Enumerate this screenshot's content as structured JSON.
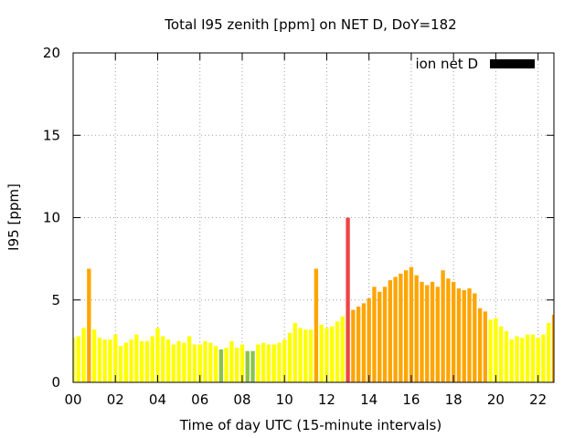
{
  "chart_data": {
    "type": "bar",
    "title": "Total I95 zenith [ppm] on NET D, DoY=182",
    "xlabel": "Time of day UTC (15-minute intervals)",
    "ylabel": "I95 [ppm]",
    "xlim": [
      0,
      22.75
    ],
    "ylim": [
      0,
      20
    ],
    "x_tick_labels": [
      "00",
      "02",
      "04",
      "06",
      "08",
      "10",
      "12",
      "14",
      "16",
      "18",
      "20",
      "22"
    ],
    "x_tick_values": [
      0,
      2,
      4,
      6,
      8,
      10,
      12,
      14,
      16,
      18,
      20,
      22
    ],
    "y_tick_values": [
      0,
      5,
      10,
      15,
      20
    ],
    "grid": true,
    "legend": {
      "label": "ion net D",
      "color": "#000000",
      "placement": "top-right"
    },
    "colors": {
      "green": "#8BC34A",
      "yellow": "#FFFF00",
      "orange": "#FFA500",
      "red": "#EE4444"
    },
    "bars": [
      {
        "x": 0.0,
        "y": 2.7,
        "c": "yellow"
      },
      {
        "x": 0.25,
        "y": 2.8,
        "c": "yellow"
      },
      {
        "x": 0.5,
        "y": 3.3,
        "c": "yellow"
      },
      {
        "x": 0.75,
        "y": 6.9,
        "c": "orange"
      },
      {
        "x": 1.0,
        "y": 3.2,
        "c": "yellow"
      },
      {
        "x": 1.25,
        "y": 2.7,
        "c": "yellow"
      },
      {
        "x": 1.5,
        "y": 2.6,
        "c": "yellow"
      },
      {
        "x": 1.75,
        "y": 2.6,
        "c": "yellow"
      },
      {
        "x": 2.0,
        "y": 2.9,
        "c": "yellow"
      },
      {
        "x": 2.25,
        "y": 2.2,
        "c": "yellow"
      },
      {
        "x": 2.5,
        "y": 2.4,
        "c": "yellow"
      },
      {
        "x": 2.75,
        "y": 2.6,
        "c": "yellow"
      },
      {
        "x": 3.0,
        "y": 2.9,
        "c": "yellow"
      },
      {
        "x": 3.25,
        "y": 2.5,
        "c": "yellow"
      },
      {
        "x": 3.5,
        "y": 2.5,
        "c": "yellow"
      },
      {
        "x": 3.75,
        "y": 2.8,
        "c": "yellow"
      },
      {
        "x": 4.0,
        "y": 3.3,
        "c": "yellow"
      },
      {
        "x": 4.25,
        "y": 2.8,
        "c": "yellow"
      },
      {
        "x": 4.5,
        "y": 2.6,
        "c": "yellow"
      },
      {
        "x": 4.75,
        "y": 2.3,
        "c": "yellow"
      },
      {
        "x": 5.0,
        "y": 2.5,
        "c": "yellow"
      },
      {
        "x": 5.25,
        "y": 2.4,
        "c": "yellow"
      },
      {
        "x": 5.5,
        "y": 2.8,
        "c": "yellow"
      },
      {
        "x": 5.75,
        "y": 2.3,
        "c": "yellow"
      },
      {
        "x": 6.0,
        "y": 2.3,
        "c": "yellow"
      },
      {
        "x": 6.25,
        "y": 2.5,
        "c": "yellow"
      },
      {
        "x": 6.5,
        "y": 2.4,
        "c": "yellow"
      },
      {
        "x": 6.75,
        "y": 2.2,
        "c": "yellow"
      },
      {
        "x": 7.0,
        "y": 2.0,
        "c": "green"
      },
      {
        "x": 7.25,
        "y": 2.1,
        "c": "yellow"
      },
      {
        "x": 7.5,
        "y": 2.5,
        "c": "yellow"
      },
      {
        "x": 7.75,
        "y": 2.1,
        "c": "yellow"
      },
      {
        "x": 8.0,
        "y": 2.3,
        "c": "yellow"
      },
      {
        "x": 8.25,
        "y": 1.9,
        "c": "green"
      },
      {
        "x": 8.5,
        "y": 1.9,
        "c": "green"
      },
      {
        "x": 8.75,
        "y": 2.3,
        "c": "yellow"
      },
      {
        "x": 9.0,
        "y": 2.4,
        "c": "yellow"
      },
      {
        "x": 9.25,
        "y": 2.3,
        "c": "yellow"
      },
      {
        "x": 9.5,
        "y": 2.3,
        "c": "yellow"
      },
      {
        "x": 9.75,
        "y": 2.4,
        "c": "yellow"
      },
      {
        "x": 10.0,
        "y": 2.6,
        "c": "yellow"
      },
      {
        "x": 10.25,
        "y": 3.0,
        "c": "yellow"
      },
      {
        "x": 10.5,
        "y": 3.6,
        "c": "yellow"
      },
      {
        "x": 10.75,
        "y": 3.3,
        "c": "yellow"
      },
      {
        "x": 11.0,
        "y": 3.2,
        "c": "yellow"
      },
      {
        "x": 11.25,
        "y": 3.2,
        "c": "yellow"
      },
      {
        "x": 11.5,
        "y": 6.9,
        "c": "orange"
      },
      {
        "x": 11.75,
        "y": 3.5,
        "c": "yellow"
      },
      {
        "x": 12.0,
        "y": 3.3,
        "c": "yellow"
      },
      {
        "x": 12.25,
        "y": 3.4,
        "c": "yellow"
      },
      {
        "x": 12.5,
        "y": 3.7,
        "c": "yellow"
      },
      {
        "x": 12.75,
        "y": 4.0,
        "c": "yellow"
      },
      {
        "x": 13.0,
        "y": 10.0,
        "c": "red"
      },
      {
        "x": 13.25,
        "y": 4.4,
        "c": "orange"
      },
      {
        "x": 13.5,
        "y": 4.6,
        "c": "orange"
      },
      {
        "x": 13.75,
        "y": 4.8,
        "c": "orange"
      },
      {
        "x": 14.0,
        "y": 5.1,
        "c": "orange"
      },
      {
        "x": 14.25,
        "y": 5.8,
        "c": "orange"
      },
      {
        "x": 14.5,
        "y": 5.5,
        "c": "orange"
      },
      {
        "x": 14.75,
        "y": 5.8,
        "c": "orange"
      },
      {
        "x": 15.0,
        "y": 6.2,
        "c": "orange"
      },
      {
        "x": 15.25,
        "y": 6.4,
        "c": "orange"
      },
      {
        "x": 15.5,
        "y": 6.6,
        "c": "orange"
      },
      {
        "x": 15.75,
        "y": 6.8,
        "c": "orange"
      },
      {
        "x": 16.0,
        "y": 7.0,
        "c": "orange"
      },
      {
        "x": 16.25,
        "y": 6.5,
        "c": "orange"
      },
      {
        "x": 16.5,
        "y": 6.1,
        "c": "orange"
      },
      {
        "x": 16.75,
        "y": 5.9,
        "c": "orange"
      },
      {
        "x": 17.0,
        "y": 6.1,
        "c": "orange"
      },
      {
        "x": 17.25,
        "y": 5.8,
        "c": "orange"
      },
      {
        "x": 17.5,
        "y": 6.8,
        "c": "orange"
      },
      {
        "x": 17.75,
        "y": 6.3,
        "c": "orange"
      },
      {
        "x": 18.0,
        "y": 6.1,
        "c": "orange"
      },
      {
        "x": 18.25,
        "y": 5.7,
        "c": "orange"
      },
      {
        "x": 18.5,
        "y": 5.6,
        "c": "orange"
      },
      {
        "x": 18.75,
        "y": 5.7,
        "c": "orange"
      },
      {
        "x": 19.0,
        "y": 5.4,
        "c": "orange"
      },
      {
        "x": 19.25,
        "y": 4.5,
        "c": "orange"
      },
      {
        "x": 19.5,
        "y": 4.3,
        "c": "orange"
      },
      {
        "x": 19.75,
        "y": 3.8,
        "c": "yellow"
      },
      {
        "x": 20.0,
        "y": 3.9,
        "c": "yellow"
      },
      {
        "x": 20.25,
        "y": 3.4,
        "c": "yellow"
      },
      {
        "x": 20.5,
        "y": 3.1,
        "c": "yellow"
      },
      {
        "x": 20.75,
        "y": 2.6,
        "c": "yellow"
      },
      {
        "x": 21.0,
        "y": 2.8,
        "c": "yellow"
      },
      {
        "x": 21.25,
        "y": 2.7,
        "c": "yellow"
      },
      {
        "x": 21.5,
        "y": 2.9,
        "c": "yellow"
      },
      {
        "x": 21.75,
        "y": 2.9,
        "c": "yellow"
      },
      {
        "x": 22.0,
        "y": 2.7,
        "c": "yellow"
      },
      {
        "x": 22.25,
        "y": 2.9,
        "c": "yellow"
      },
      {
        "x": 22.5,
        "y": 3.6,
        "c": "yellow"
      },
      {
        "x": 22.75,
        "y": 4.1,
        "c": "orange"
      }
    ]
  }
}
